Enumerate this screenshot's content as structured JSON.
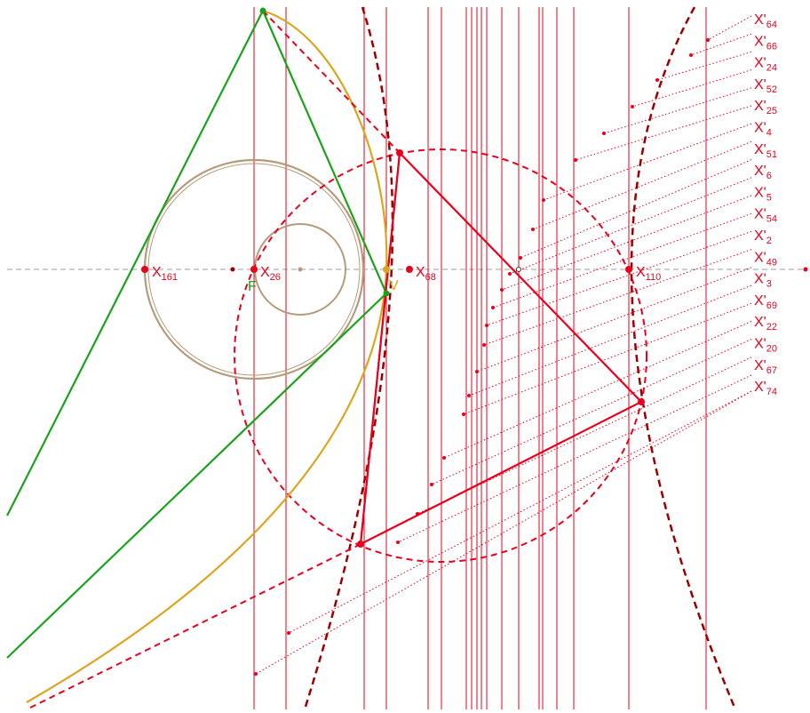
{
  "colors": {
    "red": "#e8001c",
    "dark_red": "#9b0000",
    "green": "#1aa31a",
    "gold": "#daa520",
    "tan": "#b59b7c",
    "axis_gray": "#9e9e9e"
  },
  "labels": {
    "x161": {
      "base": "X",
      "sub": "161"
    },
    "x26": {
      "base": "X",
      "sub": "26"
    },
    "x68": {
      "base": "X",
      "sub": "68"
    },
    "x110": {
      "base": "X",
      "sub": "110"
    },
    "focus": "F",
    "vertex": "V"
  },
  "right_labels": [
    {
      "base": "X'",
      "sub": "64"
    },
    {
      "base": "X'",
      "sub": "66"
    },
    {
      "base": "X'",
      "sub": "24"
    },
    {
      "base": "X'",
      "sub": "52"
    },
    {
      "base": "X'",
      "sub": "25"
    },
    {
      "base": "X'",
      "sub": "4"
    },
    {
      "base": "X'",
      "sub": "51"
    },
    {
      "base": "X'",
      "sub": "6"
    },
    {
      "base": "X'",
      "sub": "5"
    },
    {
      "base": "X'",
      "sub": "54"
    },
    {
      "base": "X'",
      "sub": "2"
    },
    {
      "base": "X'",
      "sub": "49"
    },
    {
      "base": "X'",
      "sub": "3"
    },
    {
      "base": "X'",
      "sub": "69"
    },
    {
      "base": "X'",
      "sub": "22"
    },
    {
      "base": "X'",
      "sub": "20"
    },
    {
      "base": "X'",
      "sub": "67"
    },
    {
      "base": "X'",
      "sub": "74"
    }
  ]
}
